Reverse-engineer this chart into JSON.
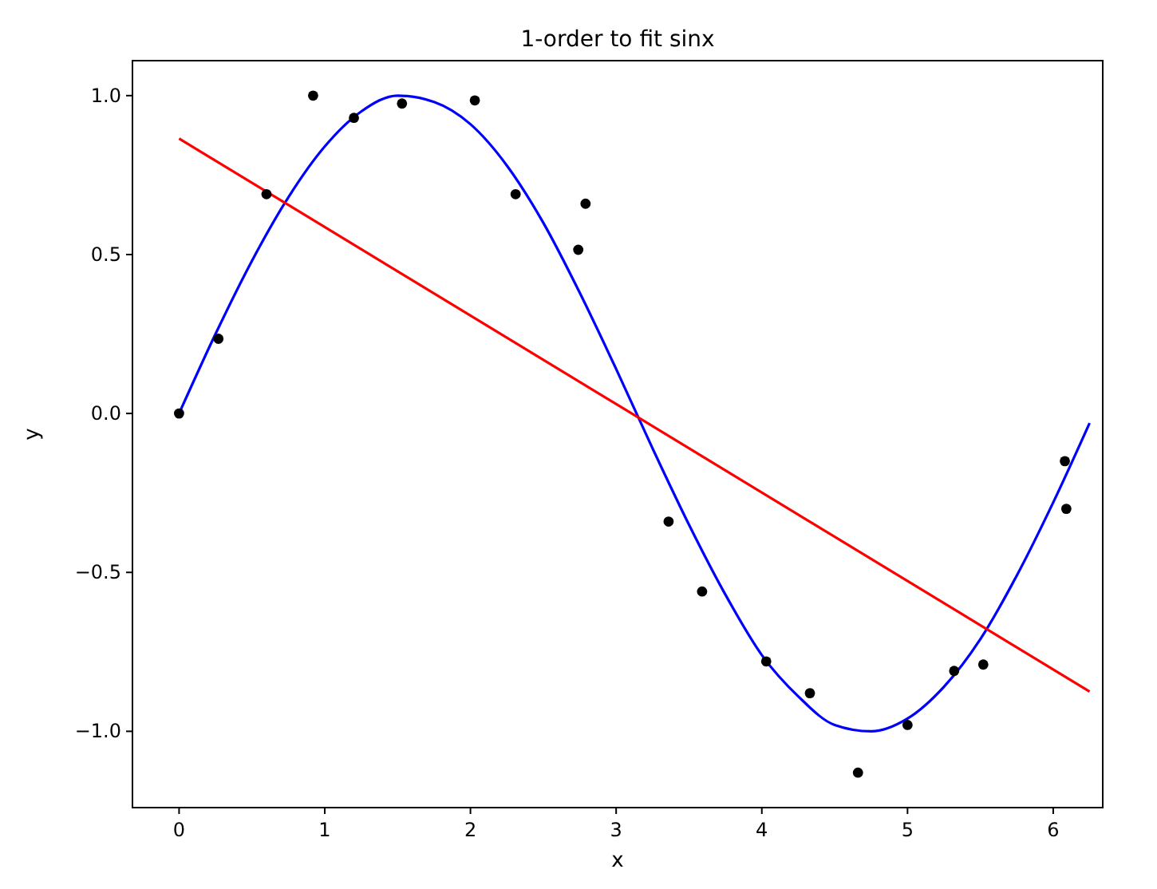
{
  "chart_data": {
    "type": "line",
    "title": "1-order to fit sinx",
    "xlabel": "x",
    "ylabel": "y",
    "xlim": [
      -0.32,
      6.34
    ],
    "ylim": [
      -1.24,
      1.11
    ],
    "xticks": [
      0,
      1,
      2,
      3,
      4,
      5,
      6
    ],
    "yticks": [
      {
        "value": -1,
        "label": "−1.0"
      },
      {
        "value": -0.5,
        "label": "−0.5"
      },
      {
        "value": 0,
        "label": "0.0"
      },
      {
        "value": 0.5,
        "label": "0.5"
      },
      {
        "value": 1,
        "label": "1.0"
      }
    ],
    "grid": false,
    "series": [
      {
        "color": "#0000ff",
        "x": [
          0,
          0.25,
          0.5,
          0.75,
          1,
          1.25,
          1.5,
          1.75,
          2,
          2.25,
          2.5,
          2.75,
          3,
          3.25,
          3.5,
          3.75,
          4,
          4.25,
          4.5,
          4.75,
          5,
          5.25,
          5.5,
          5.75,
          6,
          6.25
        ],
        "values": [
          0,
          0.25,
          0.48,
          0.68,
          0.84,
          0.95,
          1.0,
          0.98,
          0.91,
          0.78,
          0.6,
          0.38,
          0.14,
          -0.11,
          -0.35,
          -0.57,
          -0.76,
          -0.89,
          -0.98,
          -1.0,
          -0.96,
          -0.86,
          -0.71,
          -0.51,
          -0.28,
          -0.03
        ]
      },
      {
        "color": "#ff0000",
        "x": [
          0,
          6.25
        ],
        "values": [
          0.865,
          -0.875
        ]
      },
      {
        "type": "scatter",
        "marker": "circle",
        "color": "#000000",
        "x": [
          0,
          0.27,
          0.6,
          0.92,
          1.2,
          1.53,
          2.03,
          2.31,
          2.79,
          2.74,
          3.36,
          3.59,
          4.03,
          4.33,
          4.66,
          5.0,
          5.32,
          5.52,
          6.08,
          6.09
        ],
        "values": [
          0,
          0.235,
          0.69,
          1.0,
          0.93,
          0.975,
          0.985,
          0.69,
          0.66,
          0.515,
          -0.34,
          -0.56,
          -0.78,
          -0.88,
          -1.13,
          -0.98,
          -0.81,
          -0.79,
          -0.15,
          -0.3
        ]
      }
    ]
  }
}
